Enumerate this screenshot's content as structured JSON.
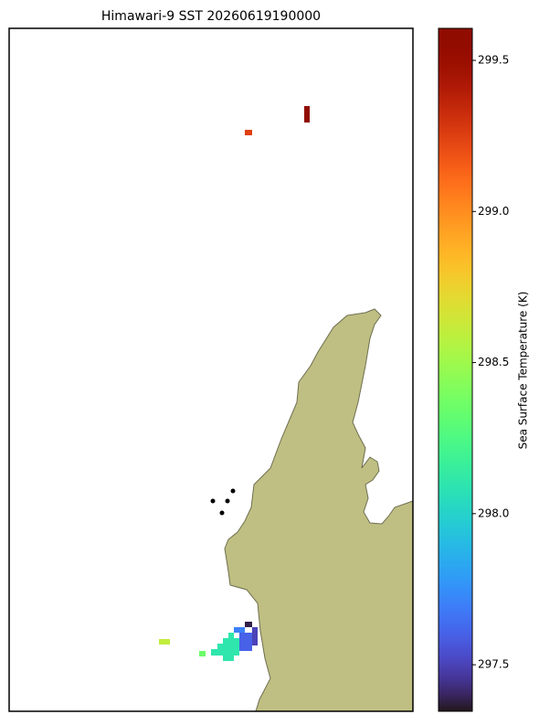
{
  "chart_data": {
    "type": "raster",
    "title": "Himawari-9 SST 20260619190000",
    "colormap": "turbo",
    "values": [
      299.6,
      299.25,
      298.6,
      298.35,
      298.1,
      298.1,
      298.1,
      298.1,
      298.1,
      297.7,
      297.6,
      297.6,
      297.38,
      297.5
    ],
    "colorbar": {
      "label": "Sea Surface Temperature (K)",
      "ylim": [
        297.346,
        299.606
      ],
      "yticks": [
        297.5,
        {
          "value": 298,
          "label": "298.0"
        },
        298.5,
        {
          "value": 299,
          "label": "299.0"
        },
        299.5
      ]
    }
  }
}
